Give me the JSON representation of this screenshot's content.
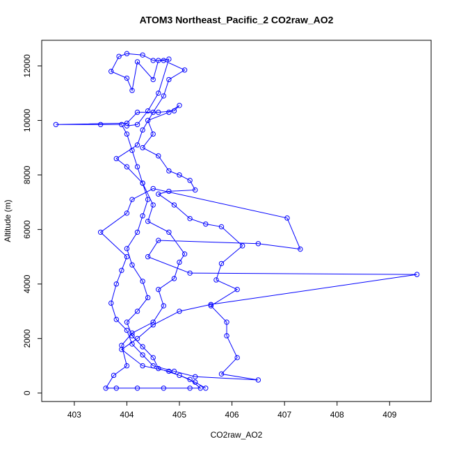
{
  "chart_data": {
    "type": "line",
    "title": "ATOM3 Northeast_Pacific_2 CO2raw_AO2",
    "xlabel": "CO2raw_AO2",
    "ylabel": "Altitude (m)",
    "color": "#0000ff",
    "markers": true,
    "xlim": [
      402.38,
      409.79
    ],
    "ylim": [
      -310,
      12940
    ],
    "xticks": [
      403,
      404,
      405,
      406,
      407,
      408,
      409
    ],
    "yticks": [
      0,
      2000,
      4000,
      6000,
      8000,
      10000,
      12000
    ],
    "x": [
      405.5,
      405.3,
      405.0,
      404.6,
      404.5,
      404.3,
      404.1,
      404.0,
      404.2,
      404.4,
      404.3,
      404.1,
      404.0,
      404.2,
      404.3,
      404.4,
      404.3,
      404.2,
      404.1,
      404.0,
      403.9,
      403.5,
      402.65,
      404.0,
      404.2,
      404.6,
      404.9,
      405.0,
      404.8,
      404.4,
      404.5,
      404.3,
      404.6,
      404.8,
      405.0,
      405.2,
      405.3,
      404.8,
      404.6,
      404.9,
      405.2,
      405.5,
      405.8,
      406.2,
      405.8,
      405.7,
      406.1,
      405.6,
      405.9,
      405.9,
      406.1,
      405.8,
      406.5,
      405.3,
      404.9,
      404.5,
      404.3,
      404.1,
      404.0,
      403.8,
      403.7,
      403.8,
      403.9,
      404.0,
      403.5,
      404.0,
      404.1,
      404.5,
      407.05,
      407.3,
      406.5,
      404.6,
      404.4,
      405.2,
      409.52,
      405.6,
      405.0,
      404.5,
      404.2,
      403.9,
      404.3,
      404.8,
      405.2,
      405.4,
      405.2,
      404.7,
      404.2,
      403.8,
      403.6,
      403.75,
      404.0,
      403.9,
      404.1,
      404.5,
      404.7,
      404.6,
      404.9,
      405.0,
      405.1,
      404.8,
      404.4,
      404.5,
      404.3,
      404.0,
      403.8,
      404.2,
      404.3,
      404.5,
      404.7,
      404.8,
      405.1,
      404.7,
      404.5,
      404.3,
      404.0,
      403.85,
      403.7,
      404.0,
      404.1,
      404.2,
      404.5,
      404.6,
      404.8,
      404.6,
      404.4,
      404.2,
      404.0
    ],
    "values": [
      180,
      400,
      650,
      900,
      1300,
      1700,
      2100,
      2600,
      3000,
      3500,
      4100,
      4700,
      5300,
      5900,
      6500,
      7100,
      7700,
      8300,
      8900,
      9500,
      9850,
      9850,
      9850,
      9900,
      10300,
      10300,
      10350,
      10550,
      10300,
      10000,
      9500,
      9000,
      8700,
      8150,
      8000,
      7800,
      7450,
      7400,
      7300,
      6900,
      6400,
      6200,
      6100,
      5400,
      4750,
      4150,
      3800,
      3200,
      2600,
      2100,
      1300,
      700,
      480,
      600,
      800,
      1000,
      1400,
      1800,
      2300,
      2700,
      3300,
      4000,
      4500,
      5000,
      5900,
      6600,
      7100,
      7500,
      6420,
      5280,
      5480,
      5600,
      5000,
      4400,
      4350,
      3250,
      3000,
      2500,
      2000,
      1600,
      1000,
      800,
      500,
      180,
      180,
      180,
      180,
      180,
      180,
      650,
      1000,
      1750,
      2200,
      2600,
      3200,
      3800,
      4200,
      4800,
      5100,
      5900,
      6300,
      6900,
      7700,
      8300,
      8600,
      9100,
      9650,
      10300,
      10900,
      11500,
      11850,
      12200,
      12200,
      12400,
      12450,
      12350,
      11800,
      11550,
      11100,
      12150,
      11500,
      12200,
      12250,
      11000,
      10350,
      9850,
      9800
    ]
  }
}
